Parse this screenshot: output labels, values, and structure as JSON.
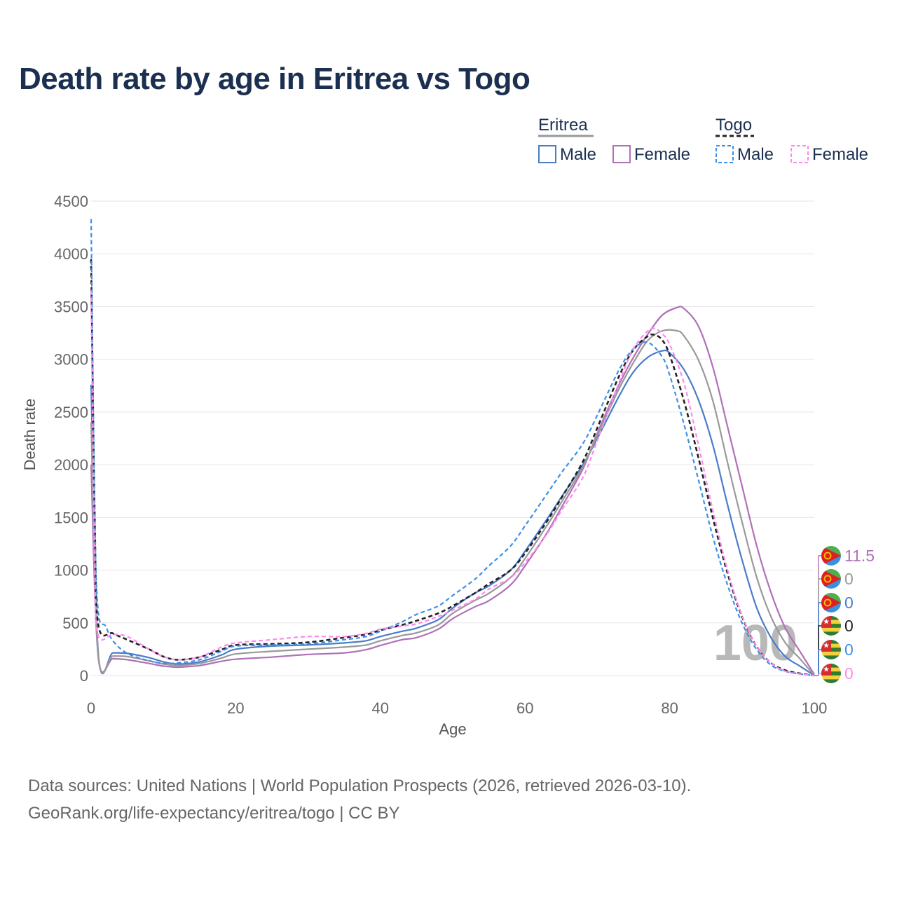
{
  "title": "Death rate by age in Eritrea vs Togo",
  "footer": {
    "line1": "Data sources: United Nations | World Population Prospects (2026, retrieved 2026-03-10).",
    "line2": "GeoRank.org/life-expectancy/eritrea/togo | CC BY"
  },
  "legend": {
    "groups": [
      {
        "name": "Eritrea",
        "swatch_color": "#999999",
        "dashed": false
      },
      {
        "name": "Togo",
        "swatch_color": "#222222",
        "dashed": true
      }
    ],
    "items": [
      {
        "label": "Male",
        "color": "#4a7cc9",
        "dashed": false
      },
      {
        "label": "Female",
        "color": "#b070b8",
        "dashed": false
      },
      {
        "label": "Male",
        "color": "#3d8fe8",
        "dashed": true
      },
      {
        "label": "Female",
        "color": "#ff88ee",
        "dashed": true
      }
    ]
  },
  "year_watermark": "100",
  "end_labels": [
    {
      "value": "11.5",
      "color": "#b070b8",
      "flag": "eritrea-flag-icon"
    },
    {
      "value": "0",
      "color": "#999999",
      "flag": "eritrea-flag-icon"
    },
    {
      "value": "0",
      "color": "#4a7cc9",
      "flag": "eritrea-flag-icon"
    },
    {
      "value": "0",
      "color": "#222222",
      "flag": "togo-flag-icon"
    },
    {
      "value": "0",
      "color": "#3d8fe8",
      "flag": "togo-flag-icon"
    },
    {
      "value": "0",
      "color": "#ff88ee",
      "flag": "togo-flag-icon"
    }
  ],
  "chart_data": {
    "type": "line",
    "title": "Death rate by age in Eritrea vs Togo",
    "xlabel": "Age",
    "ylabel": "Death rate",
    "xlim": [
      0,
      100
    ],
    "ylim": [
      0,
      4500
    ],
    "xticks": [
      0,
      20,
      40,
      60,
      80,
      100
    ],
    "yticks": [
      0,
      500,
      1000,
      1500,
      2000,
      2500,
      3000,
      3500,
      4000,
      4500
    ],
    "series": [
      {
        "name": "Eritrea Male",
        "color": "#4a7cc9",
        "dashed": false,
        "width": 2.2,
        "x": [
          0,
          1,
          3,
          5,
          8,
          10,
          12,
          15,
          18,
          20,
          25,
          30,
          35,
          38,
          40,
          43,
          45,
          48,
          50,
          53,
          55,
          58,
          60,
          63,
          65,
          68,
          70,
          73,
          75,
          77,
          79,
          80,
          82,
          84,
          86,
          88,
          90,
          92,
          94,
          96,
          98,
          100
        ],
        "y": [
          2760,
          205,
          215,
          210,
          170,
          130,
          110,
          130,
          195,
          250,
          280,
          290,
          310,
          330,
          370,
          420,
          450,
          530,
          640,
          780,
          850,
          1000,
          1180,
          1480,
          1690,
          2000,
          2250,
          2650,
          2880,
          3020,
          3080,
          3060,
          2900,
          2610,
          2180,
          1620,
          1100,
          650,
          360,
          180,
          90,
          0
        ]
      },
      {
        "name": "Eritrea Female",
        "color": "#b070b8",
        "dashed": false,
        "width": 2.2,
        "x": [
          0,
          1,
          3,
          5,
          8,
          10,
          12,
          15,
          18,
          20,
          25,
          30,
          35,
          38,
          40,
          43,
          45,
          48,
          50,
          53,
          55,
          58,
          60,
          63,
          65,
          68,
          70,
          73,
          75,
          77,
          79,
          81,
          82,
          84,
          86,
          88,
          90,
          92,
          94,
          96,
          98,
          100
        ],
        "y": [
          2000,
          170,
          160,
          150,
          115,
          90,
          80,
          95,
          135,
          155,
          175,
          200,
          215,
          245,
          285,
          340,
          360,
          440,
          540,
          650,
          710,
          860,
          1040,
          1350,
          1590,
          1960,
          2300,
          2760,
          3020,
          3240,
          3420,
          3490,
          3480,
          3310,
          2920,
          2360,
          1800,
          1240,
          790,
          450,
          230,
          11.5
        ]
      },
      {
        "name": "Eritrea Total",
        "color": "#999999",
        "dashed": false,
        "width": 2.2,
        "x": [
          0,
          1,
          3,
          5,
          8,
          10,
          12,
          15,
          18,
          20,
          25,
          30,
          35,
          38,
          40,
          43,
          45,
          48,
          50,
          53,
          55,
          58,
          60,
          63,
          65,
          68,
          70,
          73,
          75,
          77,
          79,
          81,
          82,
          84,
          86,
          88,
          90,
          92,
          94,
          96,
          98,
          100
        ],
        "y": [
          2400,
          190,
          185,
          180,
          140,
          110,
          95,
          115,
          165,
          205,
          230,
          250,
          270,
          290,
          330,
          380,
          405,
          480,
          590,
          710,
          780,
          930,
          1110,
          1420,
          1640,
          1980,
          2280,
          2720,
          2970,
          3180,
          3270,
          3270,
          3220,
          2990,
          2600,
          2020,
          1460,
          940,
          560,
          310,
          160,
          0
        ]
      },
      {
        "name": "Togo Total",
        "color": "#222222",
        "dashed": true,
        "width": 2.6,
        "x": [
          0,
          0.5,
          1,
          3,
          5,
          8,
          10,
          12,
          15,
          18,
          20,
          25,
          30,
          35,
          38,
          40,
          43,
          45,
          48,
          50,
          53,
          55,
          58,
          60,
          63,
          65,
          68,
          70,
          73,
          75,
          77,
          78,
          79,
          80,
          82,
          84,
          86,
          88,
          90,
          92,
          94,
          96,
          98,
          100
        ],
        "y": [
          3950,
          1500,
          480,
          400,
          340,
          250,
          180,
          150,
          175,
          245,
          290,
          300,
          315,
          360,
          390,
          430,
          480,
          520,
          590,
          660,
          780,
          870,
          1000,
          1160,
          1460,
          1680,
          2030,
          2350,
          2840,
          3090,
          3220,
          3230,
          3180,
          3040,
          2600,
          2060,
          1490,
          970,
          560,
          280,
          120,
          50,
          20,
          0
        ]
      },
      {
        "name": "Togo Male",
        "color": "#3d8fe8",
        "dashed": true,
        "width": 2.2,
        "x": [
          0,
          0.5,
          1,
          2,
          3,
          5,
          8,
          10,
          12,
          15,
          18,
          20,
          25,
          30,
          35,
          38,
          40,
          43,
          45,
          48,
          50,
          53,
          55,
          58,
          60,
          63,
          65,
          68,
          70,
          73,
          75,
          77,
          79,
          80,
          82,
          84,
          86,
          88,
          90,
          92,
          94,
          96,
          98,
          100
        ],
        "y": [
          4330,
          1500,
          600,
          470,
          330,
          210,
          140,
          115,
          120,
          150,
          230,
          280,
          290,
          300,
          340,
          370,
          420,
          510,
          580,
          660,
          760,
          910,
          1040,
          1230,
          1420,
          1720,
          1920,
          2200,
          2470,
          2900,
          3100,
          3160,
          3020,
          2850,
          2380,
          1850,
          1310,
          860,
          500,
          250,
          100,
          40,
          15,
          0
        ]
      },
      {
        "name": "Togo Female",
        "color": "#ff88ee",
        "dashed": true,
        "width": 2.2,
        "x": [
          0,
          0.5,
          1,
          3,
          5,
          8,
          10,
          12,
          15,
          18,
          20,
          25,
          30,
          35,
          38,
          40,
          43,
          45,
          48,
          50,
          53,
          55,
          58,
          60,
          63,
          65,
          68,
          70,
          73,
          75,
          77,
          78,
          79,
          80,
          82,
          84,
          86,
          88,
          90,
          92,
          94,
          96,
          98,
          100
        ],
        "y": [
          3650,
          1000,
          380,
          390,
          370,
          250,
          180,
          150,
          175,
          270,
          310,
          340,
          370,
          370,
          400,
          440,
          470,
          490,
          560,
          620,
          720,
          820,
          930,
          1070,
          1340,
          1560,
          1880,
          2230,
          2780,
          3100,
          3270,
          3290,
          3240,
          3140,
          2770,
          2180,
          1560,
          1000,
          570,
          280,
          120,
          40,
          15,
          0
        ]
      }
    ]
  }
}
